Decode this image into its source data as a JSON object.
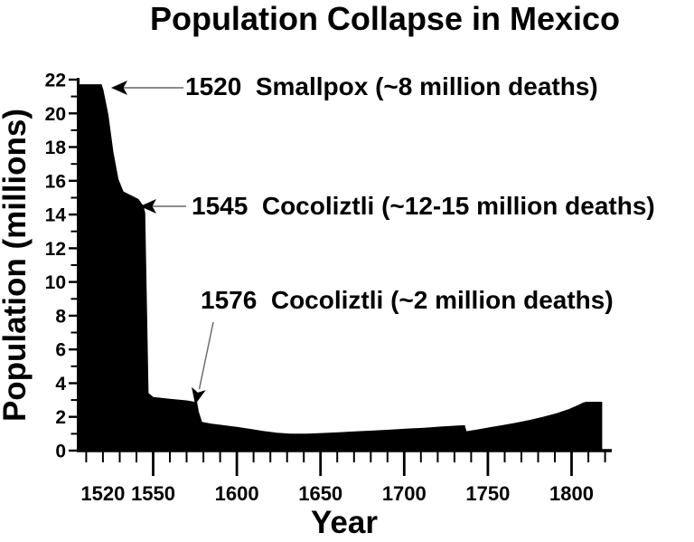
{
  "title": "Population Collapse in Mexico",
  "axes": {
    "x_label": "Year",
    "y_label": "Population (millions)"
  },
  "annotations": [
    {
      "label": "1520  Smallpox (~8 million deaths)"
    },
    {
      "label": "1545  Cocoliztli (~12-15 million deaths)"
    },
    {
      "label": "1576  Cocoliztli (~2 million deaths)"
    }
  ],
  "chart_data": {
    "type": "area",
    "title": "Population Collapse in Mexico",
    "xlabel": "Year",
    "ylabel": "Population (millions)",
    "xlim": [
      1506,
      1824
    ],
    "ylim": [
      0,
      22
    ],
    "grid": false,
    "legend": "none",
    "area_color": "#000000",
    "background_color": "#ffffff",
    "x_labeled_ticks": [
      1520,
      1550,
      1600,
      1650,
      1700,
      1750,
      1800
    ],
    "x_major_ticks": [
      1550,
      1600,
      1650,
      1700,
      1750,
      1800
    ],
    "x_minor_tick_step": 10,
    "x_minor_tick_range": [
      1510,
      1820
    ],
    "y_label_step": 2,
    "y_minor_tick_step": 1,
    "series": [
      {
        "name": "Population of Mexico (millions)",
        "points": [
          [
            1506,
            21.7
          ],
          [
            1519,
            21.7
          ],
          [
            1520,
            21.4
          ],
          [
            1523,
            19.9
          ],
          [
            1526,
            17.7
          ],
          [
            1529,
            16.1
          ],
          [
            1532,
            15.35
          ],
          [
            1536,
            15.15
          ],
          [
            1541,
            14.9
          ],
          [
            1544,
            14.5
          ],
          [
            1545,
            14.1
          ],
          [
            1547,
            3.4
          ],
          [
            1550,
            3.15
          ],
          [
            1560,
            3.05
          ],
          [
            1570,
            2.95
          ],
          [
            1576,
            2.85
          ],
          [
            1577,
            2.3
          ],
          [
            1579,
            1.68
          ],
          [
            1585,
            1.57
          ],
          [
            1592,
            1.48
          ],
          [
            1600,
            1.38
          ],
          [
            1608,
            1.26
          ],
          [
            1616,
            1.13
          ],
          [
            1624,
            1.03
          ],
          [
            1632,
            0.98
          ],
          [
            1642,
            0.98
          ],
          [
            1652,
            1.02
          ],
          [
            1662,
            1.07
          ],
          [
            1672,
            1.12
          ],
          [
            1682,
            1.17
          ],
          [
            1692,
            1.22
          ],
          [
            1702,
            1.28
          ],
          [
            1712,
            1.33
          ],
          [
            1722,
            1.4
          ],
          [
            1730,
            1.45
          ],
          [
            1736,
            1.48
          ],
          [
            1737,
            1.12
          ],
          [
            1743,
            1.21
          ],
          [
            1751,
            1.36
          ],
          [
            1759,
            1.49
          ],
          [
            1767,
            1.63
          ],
          [
            1775,
            1.79
          ],
          [
            1783,
            1.98
          ],
          [
            1791,
            2.19
          ],
          [
            1798,
            2.42
          ],
          [
            1804,
            2.68
          ],
          [
            1807,
            2.83
          ],
          [
            1809,
            2.87
          ],
          [
            1818,
            2.87
          ]
        ]
      }
    ],
    "events": [
      {
        "year": 1520,
        "epidemic": "Smallpox",
        "deaths": "~8 million"
      },
      {
        "year": 1545,
        "epidemic": "Cocoliztli",
        "deaths": "~12-15 million"
      },
      {
        "year": 1576,
        "epidemic": "Cocoliztli",
        "deaths": "~2 million"
      }
    ]
  }
}
